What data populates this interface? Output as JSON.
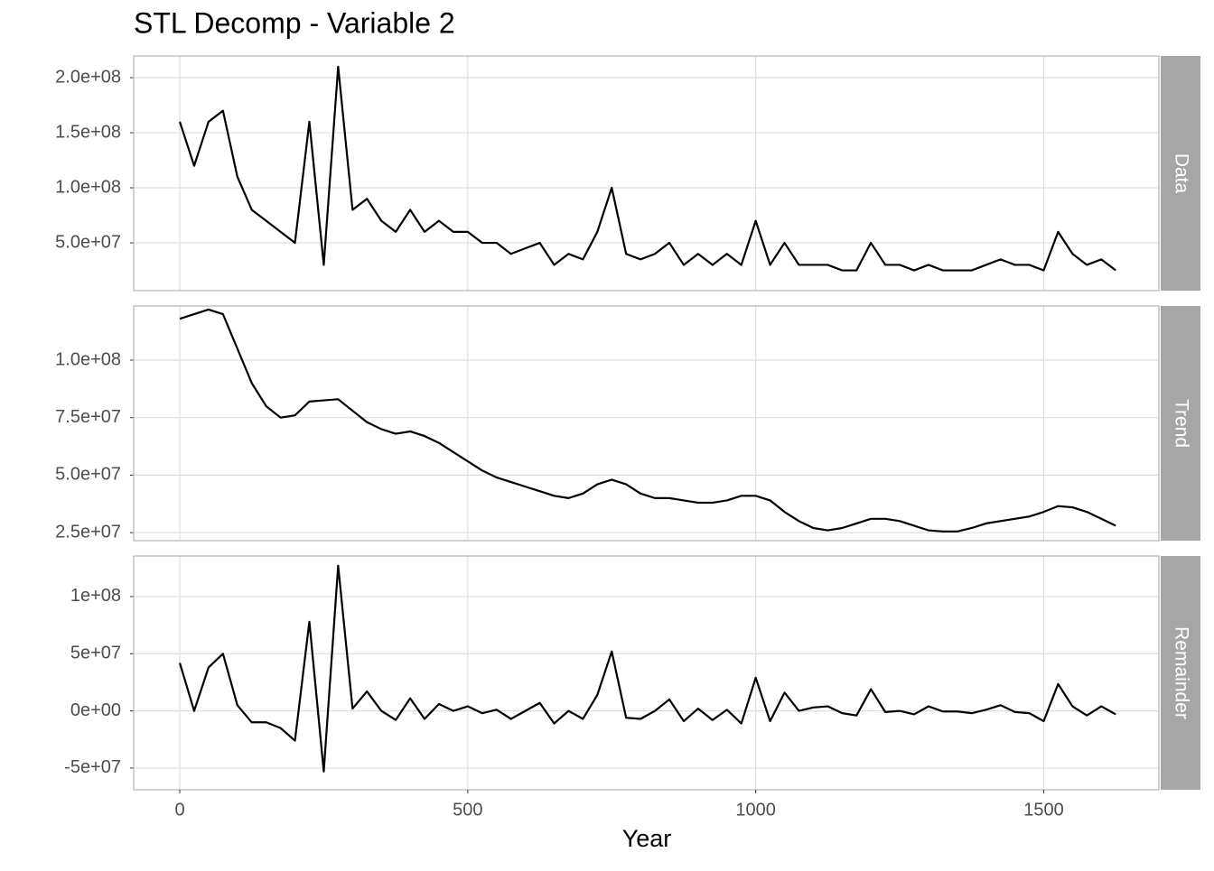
{
  "chart_data": {
    "title": "STL Decomp - Variable 2",
    "xlabel": "Year",
    "xlim": [
      -80,
      1700
    ],
    "xticks": [
      0,
      500,
      1000,
      1500
    ],
    "grid": true,
    "x": [
      0,
      25,
      50,
      75,
      100,
      125,
      150,
      175,
      200,
      225,
      250,
      275,
      300,
      325,
      350,
      375,
      400,
      425,
      450,
      475,
      500,
      525,
      550,
      575,
      600,
      625,
      650,
      675,
      700,
      725,
      750,
      775,
      800,
      825,
      850,
      875,
      900,
      925,
      950,
      975,
      1000,
      1025,
      1050,
      1075,
      1100,
      1125,
      1150,
      1175,
      1200,
      1225,
      1250,
      1275,
      1300,
      1325,
      1350,
      1375,
      1400,
      1425,
      1450,
      1475,
      1500,
      1525,
      1550,
      1575,
      1600,
      1625
    ],
    "panels": [
      {
        "type": "line",
        "strip": "Data",
        "color": "#000000",
        "ylim": [
          6600000.0,
          219700000.0
        ],
        "yticks": [
          {
            "value": 50000000.0,
            "label": "5.0e+07"
          },
          {
            "value": 100000000.0,
            "label": "1.0e+08"
          },
          {
            "value": 150000000.0,
            "label": "1.5e+08"
          },
          {
            "value": 200000000.0,
            "label": "2.0e+08"
          }
        ],
        "values": [
          160000000.0,
          120000000.0,
          160000000.0,
          170000000.0,
          110000000.0,
          80000000.0,
          70000000.0,
          60000000.0,
          50000000.0,
          160000000.0,
          30000000.0,
          210000000.0,
          80000000.0,
          90000000.0,
          70000000.0,
          60000000.0,
          80000000.0,
          60000000.0,
          70000000.0,
          60000000.0,
          60000000.0,
          50000000.0,
          50000000.0,
          40000000.0,
          45000000.0,
          50000000.0,
          30000000.0,
          40000000.0,
          35000000.0,
          60000000.0,
          100000000.0,
          40000000.0,
          35000000.0,
          40000000.0,
          50000000.0,
          30000000.0,
          40000000.0,
          30000000.0,
          40000000.0,
          30000000.0,
          70000000.0,
          30000000.0,
          50000000.0,
          30000000.0,
          30000000.0,
          30000000.0,
          25000000.0,
          25000000.0,
          50000000.0,
          30000000.0,
          30000000.0,
          25000000.0,
          30000000.0,
          25000000.0,
          25000000.0,
          25000000.0,
          30000000.0,
          35000000.0,
          30000000.0,
          30000000.0,
          25000000.0,
          60000000.0,
          40000000.0,
          30000000.0,
          35000000.0,
          25000000.0
        ]
      },
      {
        "type": "line",
        "strip": "Trend",
        "color": "#000000",
        "ylim": [
          21500000.0,
          123550000.0
        ],
        "yticks": [
          {
            "value": 25000000.0,
            "label": "2.5e+07"
          },
          {
            "value": 50000000.0,
            "label": "5.0e+07"
          },
          {
            "value": 75000000.0,
            "label": "7.5e+07"
          },
          {
            "value": 100000000.0,
            "label": "1.0e+08"
          }
        ],
        "values": [
          118000000.0,
          120000000.0,
          122000000.0,
          120000000.0,
          105000000.0,
          90000000.0,
          80000000.0,
          75000000.0,
          76000000.0,
          82000000.0,
          82500000.0,
          83000000.0,
          78000000.0,
          73000000.0,
          70000000.0,
          68000000.0,
          69000000.0,
          67000000.0,
          64000000.0,
          60000000.0,
          56000000.0,
          52000000.0,
          49000000.0,
          47000000.0,
          45000000.0,
          43000000.0,
          41000000.0,
          40000000.0,
          42000000.0,
          46000000.0,
          48000000.0,
          46000000.0,
          42000000.0,
          40000000.0,
          40000000.0,
          39000000.0,
          38000000.0,
          38000000.0,
          39000000.0,
          41000000.0,
          41000000.0,
          39000000.0,
          34000000.0,
          30000000.0,
          27000000.0,
          26000000.0,
          27000000.0,
          29000000.0,
          31000000.0,
          31000000.0,
          30000000.0,
          28000000.0,
          26000000.0,
          25500000.0,
          25500000.0,
          27000000.0,
          29000000.0,
          30000000.0,
          31000000.0,
          32000000.0,
          34000000.0,
          36500000.0,
          36000000.0,
          34000000.0,
          31000000.0,
          28000000.0
        ]
      },
      {
        "type": "line",
        "strip": "Remainder",
        "color": "#000000",
        "ylim": [
          -69000000.0,
          135500000.0
        ],
        "yticks": [
          {
            "value": -50000000.0,
            "label": "-5e+07"
          },
          {
            "value": 0,
            "label": "0e+00"
          },
          {
            "value": 50000000.0,
            "label": "5e+07"
          },
          {
            "value": 100000000.0,
            "label": "1e+08"
          }
        ],
        "values": [
          42000000.0,
          0,
          38000000.0,
          50000000.0,
          5000000.0,
          -10000000.0,
          -10000000.0,
          -15000000.0,
          -26000000.0,
          78000000.0,
          -53000000.0,
          127000000.0,
          2000000.0,
          17000000.0,
          0,
          -8000000.0,
          11000000.0,
          -7000000.0,
          6000000.0,
          0,
          4000000.0,
          -2000000.0,
          1000000.0,
          -7000000.0,
          0,
          7000000.0,
          -11000000.0,
          0,
          -7000000.0,
          14000000.0,
          52000000.0,
          -6000000.0,
          -7000000.0,
          0,
          10000000.0,
          -9000000.0,
          2000000.0,
          -8000000.0,
          1000000.0,
          -11000000.0,
          29000000.0,
          -9000000.0,
          16000000.0,
          0,
          3000000.0,
          4000000.0,
          -2000000.0,
          -4000000.0,
          19000000.0,
          -1000000.0,
          0,
          -3000000.0,
          4000000.0,
          -500000.0,
          -500000.0,
          -2000000.0,
          1000000.0,
          5000000.0,
          -1000000.0,
          -2000000.0,
          -9000000.0,
          23500000.0,
          4000000.0,
          -4000000.0,
          4000000.0,
          -3000000.0
        ]
      }
    ]
  }
}
